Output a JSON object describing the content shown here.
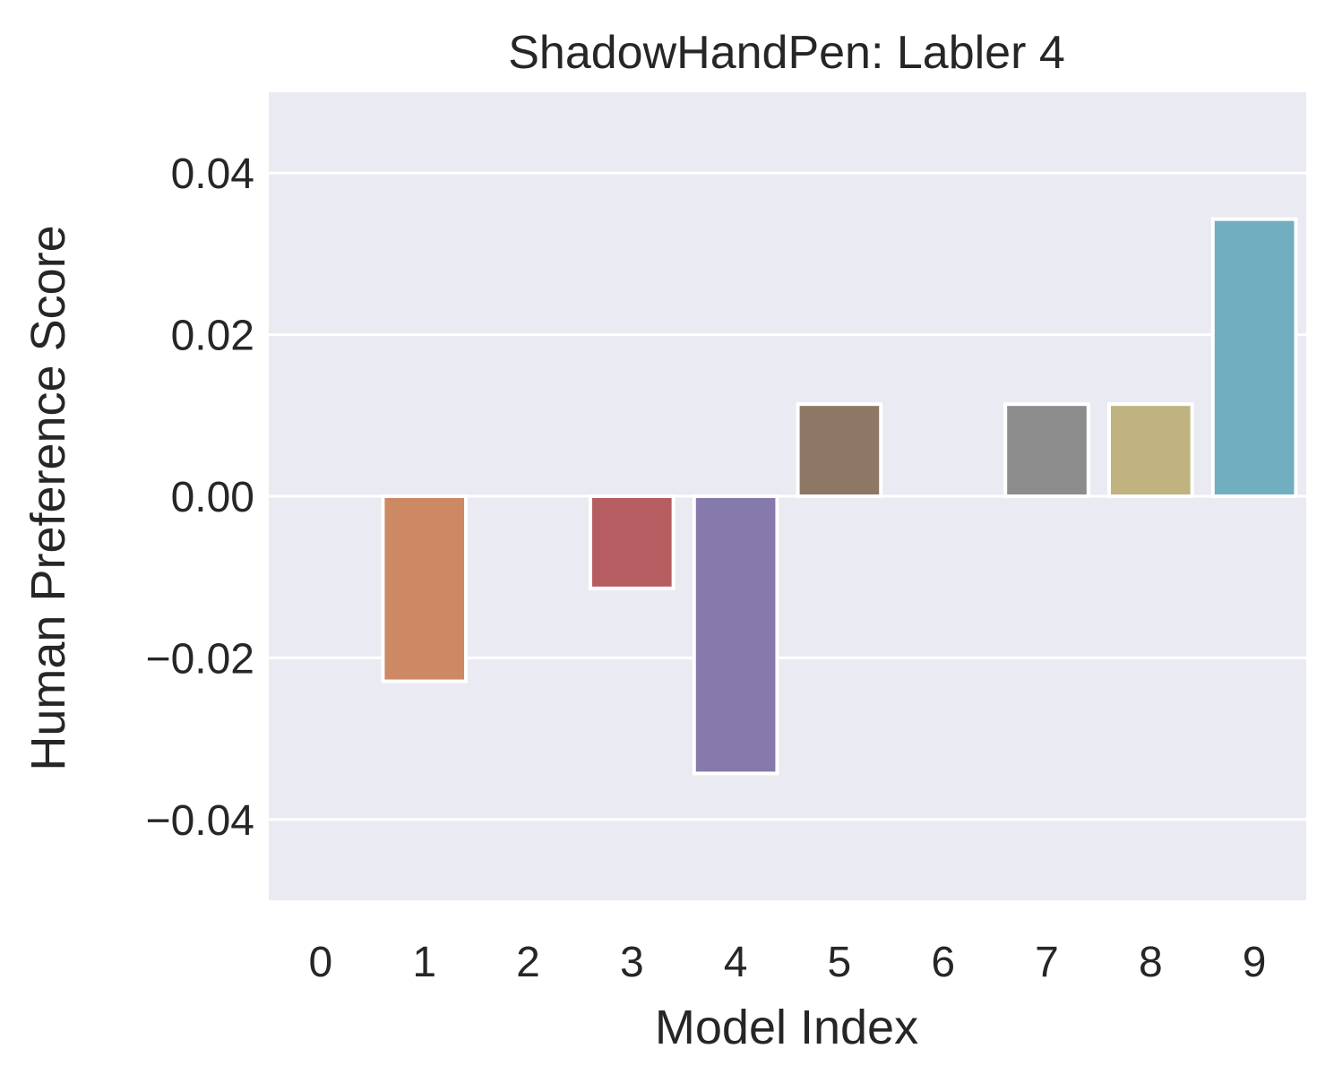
{
  "chart_data": {
    "type": "bar",
    "title": "ShadowHandPen: Labler 4",
    "xlabel": "Model Index",
    "ylabel": "Human Preference Score",
    "categories": [
      "0",
      "1",
      "2",
      "3",
      "4",
      "5",
      "6",
      "7",
      "8",
      "9"
    ],
    "values": [
      0.0,
      -0.0229,
      0.0,
      -0.0114,
      -0.0343,
      0.0114,
      0.0,
      0.0114,
      0.0114,
      0.0343
    ],
    "colors": [
      "#5975a4",
      "#cc8963",
      "#5f9e6e",
      "#b55d60",
      "#857aab",
      "#8d7866",
      "#d095bf",
      "#8c8c8c",
      "#c1b37f",
      "#71aec0"
    ],
    "yticks": [
      0.04,
      0.02,
      0.0,
      -0.02,
      -0.04
    ],
    "ytick_labels": [
      "0.04",
      "0.02",
      "0.00",
      "−0.02",
      "−0.04"
    ],
    "ylim": [
      -0.05,
      0.05
    ],
    "grid": true,
    "background": "#eaeaf2"
  }
}
